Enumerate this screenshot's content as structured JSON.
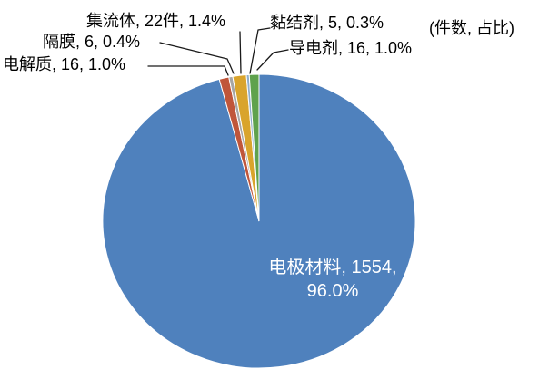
{
  "chart_data": {
    "type": "pie",
    "background_color": "#FFFFFF",
    "unit_note": "(件数, 占比)",
    "direction": "clockwise",
    "start_angle_deg": 0,
    "legend_position": "none",
    "value_format": "name, count, percent",
    "slices": [
      {
        "key": "electrode-material",
        "name": "电极材料",
        "count": 1554,
        "percent": 96.0,
        "label": "电极材料, 1554, 96.0%",
        "color": "#4F81BD",
        "label_placement": "inside"
      },
      {
        "key": "electrolyte",
        "name": "电解质",
        "count": 16,
        "percent": 1.0,
        "label": "电解质, 16, 1.0%",
        "color": "#C0563A",
        "label_placement": "outside-left"
      },
      {
        "key": "separator",
        "name": "隔膜",
        "count": 6,
        "percent": 0.4,
        "label": "隔膜, 6, 0.4%",
        "color": "#A6A6A6",
        "label_placement": "outside-left"
      },
      {
        "key": "current-collector",
        "name": "集流体",
        "count": 22,
        "percent": 1.4,
        "label": "集流体, 22件, 1.4%",
        "color": "#D9A42C",
        "label_placement": "outside-top"
      },
      {
        "key": "binder",
        "name": "黏结剂",
        "count": 5,
        "percent": 0.3,
        "label": "黏结剂, 5, 0.3%",
        "color": "#8FAECB",
        "label_placement": "outside-right"
      },
      {
        "key": "conductive-agent",
        "name": "导电剂",
        "count": 16,
        "percent": 1.0,
        "label": "导电剂, 16, 1.0%",
        "color": "#5FA24D",
        "label_placement": "outside-right"
      }
    ],
    "inside_label": {
      "line1": "电极材料, 1554,",
      "line2": "96.0%"
    }
  }
}
